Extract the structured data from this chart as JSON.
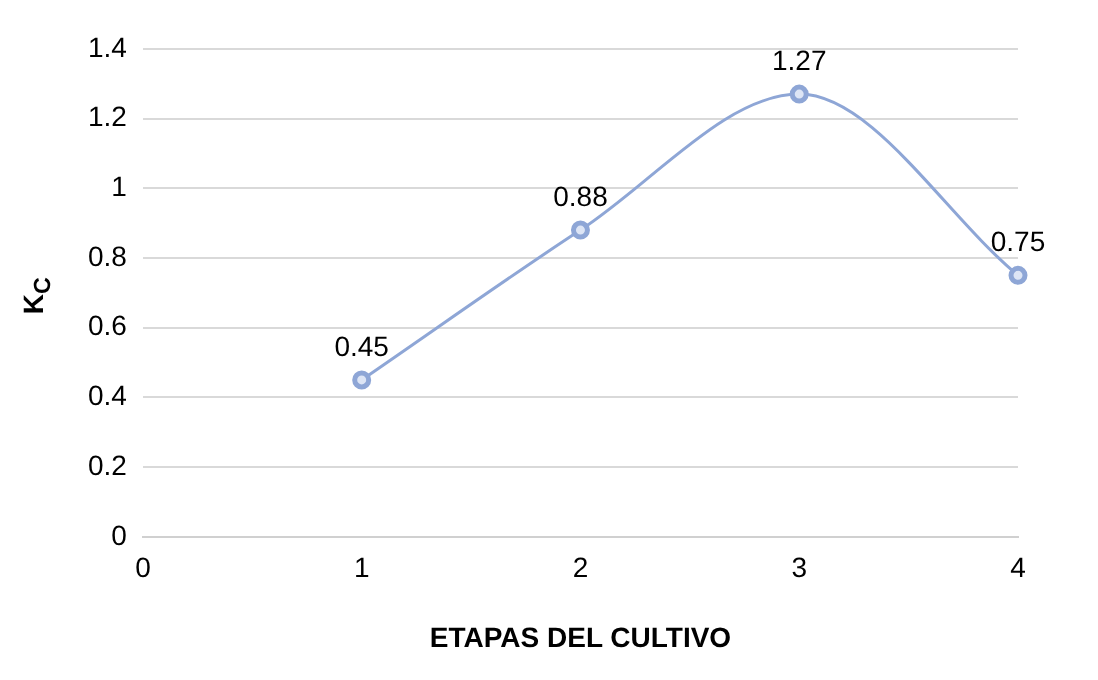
{
  "chart_data": {
    "type": "line",
    "xlabel": "ETAPAS DEL CULTIVO",
    "ylabel": "K$_{C}$",
    "x": [
      1,
      2,
      3,
      4
    ],
    "series": [
      {
        "color": "#8ea6d6",
        "values": [
          0.45,
          0.88,
          1.27,
          0.75
        ]
      }
    ],
    "xlim": [
      0,
      4
    ],
    "xticks": [
      0,
      1,
      2,
      3,
      4
    ],
    "ylim": [
      0,
      1.4
    ],
    "yticks": [
      0,
      0.2,
      0.4,
      0.6,
      0.8,
      1,
      1.2,
      1.4
    ],
    "grid": "y",
    "marker": "circle",
    "data_labels": true,
    "legend": false,
    "line_style": "solid"
  }
}
